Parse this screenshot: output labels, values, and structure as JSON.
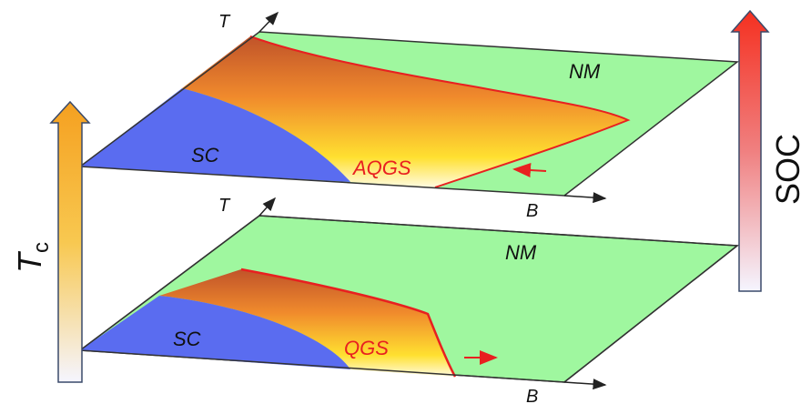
{
  "planes": [
    {
      "t_axis": "T",
      "b_axis": "B",
      "regions": [
        "NM",
        "SC",
        "AQGS"
      ]
    },
    {
      "t_axis": "T",
      "b_axis": "B",
      "regions": [
        "NM",
        "SC",
        "QGS"
      ]
    }
  ],
  "left_arrow": {
    "label": "T",
    "subscript": "c"
  },
  "right_arrow": {
    "label": "SOC"
  }
}
